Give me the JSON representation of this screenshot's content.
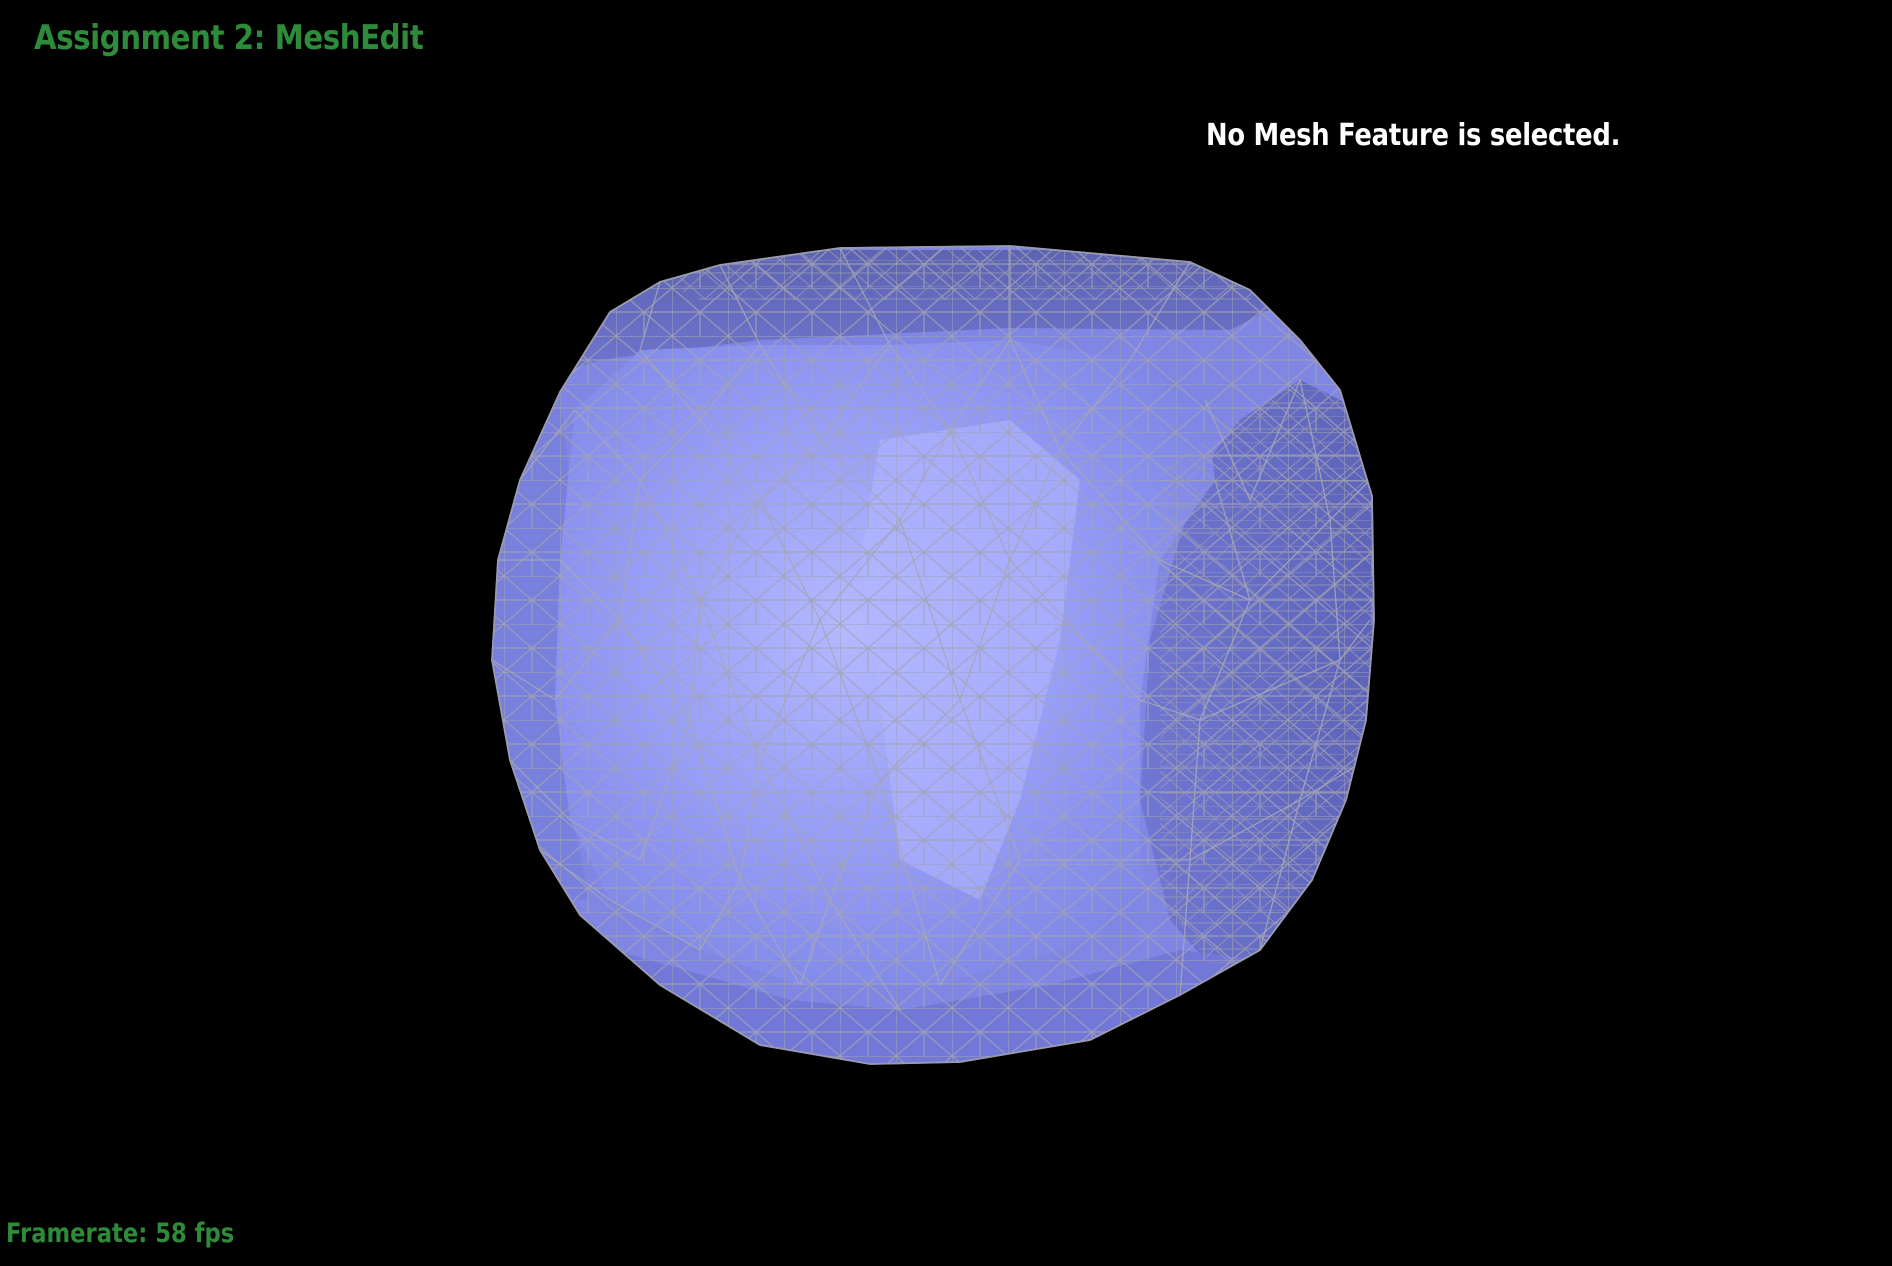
{
  "app": {
    "title": "Assignment 2: MeshEdit"
  },
  "viewport": {
    "selection_status": "No Mesh Feature is selected.",
    "framerate": "Framerate: 58 fps",
    "mesh_fill_color": "#8f96f2",
    "mesh_edge_color": "#9a9aa8",
    "background_color": "#000000"
  },
  "colors": {
    "title": "#2e8b3a",
    "status_text": "#ffffff",
    "framerate": "#2e8b3a"
  }
}
